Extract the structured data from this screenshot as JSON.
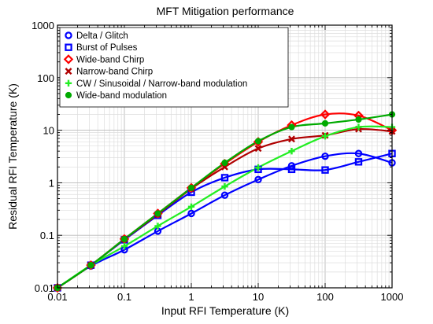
{
  "chart_data": {
    "type": "line",
    "title": "MFT Mitigation performance",
    "xlabel": "Input RFI Temperature (K)",
    "ylabel": "Residual RFI Temperature (K)",
    "xscale": "log",
    "yscale": "log",
    "xlim": [
      0.01,
      1000
    ],
    "ylim": [
      0.01,
      1000
    ],
    "grid": true,
    "legend_position": "top-left",
    "x_ticks": [
      "0.01",
      "0.1",
      "1",
      "10",
      "100",
      "1000"
    ],
    "y_ticks": [
      "0.01",
      "0.1",
      "1",
      "10",
      "100",
      "1000"
    ],
    "x": [
      0.01,
      0.0316,
      0.1,
      0.316,
      1,
      3.16,
      10,
      31.6,
      100,
      316,
      1000
    ],
    "series": [
      {
        "name": "Delta / Glitch",
        "color": "#0000ff",
        "marker": "circle-open",
        "values": [
          0.01,
          0.026,
          0.053,
          0.12,
          0.26,
          0.58,
          1.15,
          2.1,
          3.2,
          3.6,
          2.4
        ]
      },
      {
        "name": "Burst of Pulses",
        "color": "#0000ff",
        "marker": "square-open",
        "values": [
          0.01,
          0.027,
          0.082,
          0.24,
          0.66,
          1.25,
          1.8,
          1.8,
          1.75,
          2.5,
          3.6
        ]
      },
      {
        "name": "Wide-band Chirp",
        "color": "#ff0000",
        "marker": "diamond-open",
        "values": [
          0.01,
          0.027,
          0.085,
          0.26,
          0.8,
          2.3,
          6.0,
          12.5,
          20,
          19,
          10
        ]
      },
      {
        "name": "Narrow-band Chirp",
        "color": "#b00000",
        "marker": "x",
        "values": [
          0.01,
          0.027,
          0.084,
          0.25,
          0.77,
          2.0,
          4.5,
          6.8,
          8.0,
          10.5,
          9.5
        ]
      },
      {
        "name": "CW / Sinusoidal / Narrow-band modulation",
        "color": "#22ee22",
        "marker": "plus",
        "values": [
          0.01,
          0.027,
          0.062,
          0.15,
          0.35,
          0.85,
          1.95,
          4.0,
          7.7,
          11.5,
          11.5
        ]
      },
      {
        "name": "Wide-band modulation",
        "color": "#00aa00",
        "marker": "circle-filled",
        "values": [
          0.01,
          0.027,
          0.085,
          0.26,
          0.8,
          2.4,
          6.2,
          11.5,
          13.5,
          16,
          20
        ]
      }
    ]
  }
}
